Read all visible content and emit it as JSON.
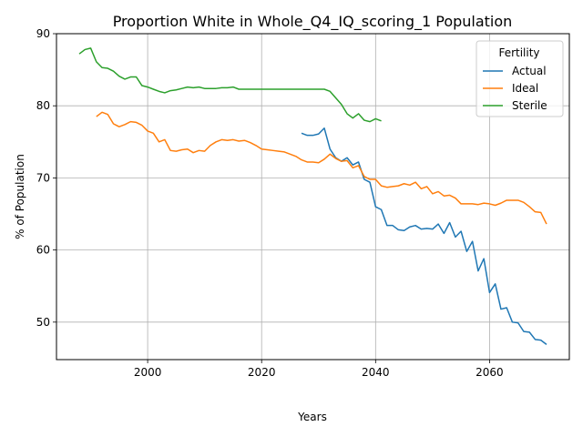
{
  "chart_data": {
    "type": "line",
    "title": "Proportion White in Whole_Q4_IQ_scoring_1 Population",
    "xlabel": "Years",
    "ylabel": "% of Population",
    "xlim": [
      1984,
      2074
    ],
    "ylim": [
      44.8,
      90
    ],
    "xticks": [
      2000,
      2020,
      2040,
      2060
    ],
    "yticks": [
      50,
      60,
      70,
      80,
      90
    ],
    "grid": true,
    "legend": {
      "title": "Fertility",
      "placement": "top-right"
    },
    "series": [
      {
        "name": "Actual",
        "color": "#1f77b4",
        "x": [
          2027,
          2028,
          2029,
          2030,
          2031,
          2032,
          2033,
          2034,
          2035,
          2036,
          2037,
          2038,
          2039,
          2040,
          2041,
          2042,
          2043,
          2044,
          2045,
          2046,
          2047,
          2048,
          2049,
          2050,
          2051,
          2052,
          2053,
          2054,
          2055,
          2056,
          2057,
          2058,
          2059,
          2060,
          2061,
          2062,
          2063,
          2064,
          2065,
          2066,
          2067,
          2068,
          2069,
          2070
        ],
        "y": [
          76.2,
          75.9,
          75.9,
          76.1,
          76.9,
          74.0,
          72.8,
          72.3,
          72.8,
          71.8,
          72.2,
          69.8,
          69.4,
          66.0,
          65.6,
          63.4,
          63.4,
          62.8,
          62.7,
          63.2,
          63.4,
          62.9,
          63.0,
          62.9,
          63.6,
          62.3,
          63.8,
          61.8,
          62.6,
          59.8,
          61.2,
          57.1,
          58.8,
          54.1,
          55.3,
          51.8,
          52.0,
          50.0,
          49.9,
          48.7,
          48.6,
          47.6,
          47.5,
          46.9
        ]
      },
      {
        "name": "Ideal",
        "color": "#ff7f0e",
        "x": [
          1991,
          1992,
          1993,
          1994,
          1995,
          1996,
          1997,
          1998,
          1999,
          2000,
          2001,
          2002,
          2003,
          2004,
          2005,
          2006,
          2007,
          2008,
          2009,
          2010,
          2011,
          2012,
          2013,
          2014,
          2015,
          2016,
          2017,
          2018,
          2019,
          2020,
          2021,
          2022,
          2023,
          2024,
          2025,
          2026,
          2027,
          2028,
          2029,
          2030,
          2031,
          2032,
          2033,
          2034,
          2035,
          2036,
          2037,
          2038,
          2039,
          2040,
          2041,
          2042,
          2043,
          2044,
          2045,
          2046,
          2047,
          2048,
          2049,
          2050,
          2051,
          2052,
          2053,
          2054,
          2055,
          2056,
          2057,
          2058,
          2059,
          2060,
          2061,
          2062,
          2063,
          2064,
          2065,
          2066,
          2067,
          2068,
          2069,
          2070
        ],
        "y": [
          78.5,
          79.1,
          78.8,
          77.5,
          77.1,
          77.4,
          77.8,
          77.7,
          77.3,
          76.5,
          76.2,
          75.0,
          75.3,
          73.8,
          73.7,
          73.9,
          74.0,
          73.5,
          73.8,
          73.7,
          74.5,
          75.0,
          75.3,
          75.2,
          75.3,
          75.1,
          75.2,
          74.9,
          74.5,
          74.0,
          73.9,
          73.8,
          73.7,
          73.6,
          73.3,
          73.0,
          72.5,
          72.2,
          72.2,
          72.1,
          72.6,
          73.3,
          72.7,
          72.3,
          72.4,
          71.4,
          71.7,
          70.2,
          69.8,
          69.8,
          68.9,
          68.7,
          68.8,
          68.9,
          69.2,
          69.0,
          69.4,
          68.5,
          68.8,
          67.8,
          68.1,
          67.5,
          67.6,
          67.2,
          66.4,
          66.4,
          66.4,
          66.3,
          66.5,
          66.4,
          66.2,
          66.5,
          66.9,
          66.9,
          66.9,
          66.6,
          66.0,
          65.3,
          65.2,
          63.6
        ]
      },
      {
        "name": "Sterile",
        "color": "#2ca02c",
        "x": [
          1988,
          1989,
          1990,
          1991,
          1992,
          1993,
          1994,
          1995,
          1996,
          1997,
          1998,
          1999,
          2000,
          2001,
          2002,
          2003,
          2004,
          2005,
          2006,
          2007,
          2008,
          2009,
          2010,
          2011,
          2012,
          2013,
          2014,
          2015,
          2016,
          2017,
          2018,
          2019,
          2020,
          2021,
          2022,
          2023,
          2024,
          2025,
          2026,
          2027,
          2028,
          2029,
          2030,
          2031,
          2032,
          2033,
          2034,
          2035,
          2036,
          2037,
          2038,
          2039,
          2040,
          2041
        ],
        "y": [
          87.2,
          87.8,
          88.0,
          86.1,
          85.3,
          85.2,
          84.8,
          84.1,
          83.7,
          84.0,
          84.0,
          82.8,
          82.6,
          82.3,
          82.0,
          81.8,
          82.1,
          82.2,
          82.4,
          82.6,
          82.5,
          82.6,
          82.4,
          82.4,
          82.4,
          82.5,
          82.5,
          82.6,
          82.3,
          82.3,
          82.3,
          82.3,
          82.3,
          82.3,
          82.3,
          82.3,
          82.3,
          82.3,
          82.3,
          82.3,
          82.3,
          82.3,
          82.3,
          82.3,
          82.0,
          81.1,
          80.2,
          78.9,
          78.3,
          78.9,
          78.0,
          77.8,
          78.2,
          77.9
        ]
      }
    ]
  }
}
